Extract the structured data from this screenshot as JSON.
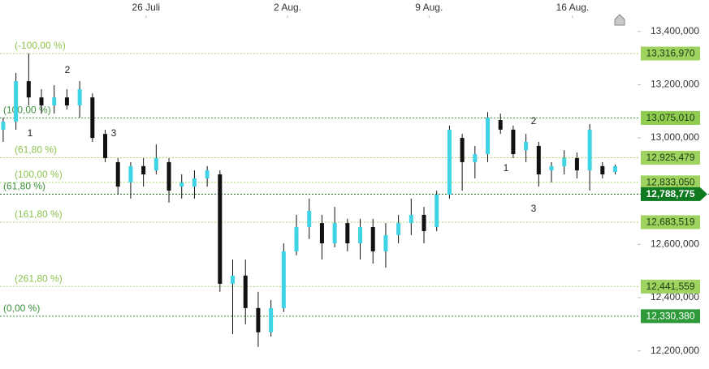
{
  "chart_data": {
    "type": "candlestick",
    "xlim": [
      0,
      100
    ],
    "xticks": [
      {
        "value": 22.9,
        "label": "26 Juli"
      },
      {
        "value": 45.1,
        "label": "2 Aug."
      },
      {
        "value": 67.3,
        "label": "9 Aug."
      },
      {
        "value": 89.8,
        "label": "16 Aug."
      }
    ],
    "ylim": [
      12132000,
      13518000
    ],
    "yticks": [
      {
        "value": 12200000,
        "label": "12,200,000"
      },
      {
        "value": 12400000,
        "label": "12,400,000"
      },
      {
        "value": 12600000,
        "label": "12,600,000"
      },
      {
        "value": 13000000,
        "label": "13,000,000"
      },
      {
        "value": 13200000,
        "label": "13,200,000"
      },
      {
        "value": 13400000,
        "label": "13,400,000"
      }
    ],
    "up_color": "#3fd3e6",
    "down_color": "#111111",
    "candles": {
      "x": [
        0.5,
        2.5,
        4.5,
        6.5,
        8.5,
        10.5,
        12.5,
        14.5,
        16.5,
        18.5,
        20.5,
        22.5,
        24.5,
        26.5,
        28.5,
        30.5,
        32.5,
        34.5,
        36.5,
        38.5,
        40.5,
        42.5,
        44.5,
        46.5,
        48.5,
        50.5,
        52.5,
        54.5,
        56.5,
        58.5,
        60.5,
        62.5,
        64.5,
        66.5,
        68.5,
        70.5,
        72.5,
        74.5,
        76.5,
        78.5,
        80.5,
        82.5,
        84.5,
        86.5,
        88.5,
        90.5,
        92.5,
        94.5,
        96.5
      ],
      "open": [
        13031000,
        13061000,
        13213000,
        13152000,
        13122000,
        13152000,
        13122000,
        13152000,
        13015000,
        12909000,
        12833000,
        12894000,
        12878000,
        12909000,
        12817000,
        12817000,
        12848000,
        12863000,
        12452000,
        12483000,
        12361000,
        12270000,
        12361000,
        12574000,
        12665000,
        12680000,
        12604000,
        12680000,
        12604000,
        12665000,
        12574000,
        12635000,
        12680000,
        12711000,
        12665000,
        12787000,
        13000000,
        12909000,
        12939000,
        13067000,
        13031000,
        12954000,
        12970000,
        12878000,
        12894000,
        12924000,
        12878000,
        12894000,
        12872000
      ],
      "high": [
        13076000,
        13244000,
        13317000,
        13183000,
        13198000,
        13183000,
        13213000,
        13167000,
        13031000,
        12924000,
        12909000,
        12924000,
        12976000,
        12924000,
        12863000,
        12878000,
        12894000,
        12878000,
        12543000,
        12543000,
        12422000,
        12391000,
        12604000,
        12711000,
        12772000,
        12711000,
        12741000,
        12696000,
        12696000,
        12696000,
        12680000,
        12711000,
        12772000,
        12741000,
        12802000,
        13046000,
        13015000,
        12970000,
        13097000,
        13091000,
        13046000,
        13015000,
        12985000,
        12909000,
        12954000,
        12945000,
        13052000,
        12909000,
        12900000
      ],
      "low": [
        12985000,
        13031000,
        13122000,
        13091000,
        13091000,
        13107000,
        13076000,
        12985000,
        12909000,
        12787000,
        12772000,
        12817000,
        12863000,
        12757000,
        12772000,
        12772000,
        12817000,
        12422000,
        12263000,
        12300000,
        12215000,
        12254000,
        12346000,
        12559000,
        12620000,
        12543000,
        12589000,
        12574000,
        12543000,
        12528000,
        12513000,
        12604000,
        12635000,
        12604000,
        12650000,
        12772000,
        12802000,
        12848000,
        12909000,
        13015000,
        12924000,
        12909000,
        12817000,
        12833000,
        12863000,
        12848000,
        12802000,
        12848000,
        12863000
      ],
      "close": [
        13061000,
        13213000,
        13152000,
        13122000,
        13152000,
        13122000,
        13183000,
        13000000,
        12924000,
        12817000,
        12894000,
        12863000,
        12924000,
        12802000,
        12833000,
        12848000,
        12878000,
        12452000,
        12483000,
        12361000,
        12270000,
        12361000,
        12574000,
        12665000,
        12726000,
        12604000,
        12680000,
        12604000,
        12665000,
        12574000,
        12635000,
        12680000,
        12711000,
        12650000,
        12787000,
        13031000,
        12909000,
        12939000,
        13076000,
        13031000,
        12939000,
        12985000,
        12863000,
        12894000,
        12924000,
        12878000,
        13031000,
        12863000,
        12894000
      ]
    },
    "levels": [
      {
        "fib_label": "(-100,00 %)",
        "price": {
          "value": 13316970,
          "label": "13,316,970"
        },
        "style": "light"
      },
      {
        "fib_label": "(100,00 %)",
        "price": {
          "value": 13075010,
          "label": "13,075,010"
        },
        "style": "dark"
      },
      {
        "fib_label": "(61,80 %)",
        "price": {
          "value": 12925479,
          "label": "12,925,479"
        },
        "style": "light"
      },
      {
        "fib_label": "(100,00 %)",
        "price": {
          "value": 12833050,
          "label": "12,833,050"
        },
        "style": "light"
      },
      {
        "fib_label": "(61,80 %)",
        "price": {
          "value": 12788775,
          "label": "12,788,775"
        },
        "style": "current"
      },
      {
        "fib_label": "(161,80 %)",
        "price": {
          "value": 12683519,
          "label": "12,683,519"
        },
        "style": "light"
      },
      {
        "fib_label": "(261,80 %)",
        "price": {
          "value": 12441559,
          "label": "12,441,559"
        },
        "style": "light"
      },
      {
        "fib_label": "(0,00 %)",
        "price": {
          "value": 12330380,
          "label": "12,330,380"
        },
        "style": "dark"
      }
    ],
    "annotations": [
      "1",
      "2",
      "3",
      "2",
      "1",
      "3"
    ]
  }
}
